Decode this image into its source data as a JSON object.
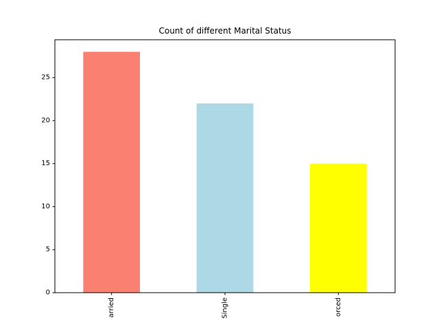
{
  "chart_data": {
    "type": "bar",
    "title": "Count of different Marital Status",
    "xlabel": "",
    "ylabel": "",
    "categories": [
      "arried",
      "Single",
      "orced"
    ],
    "values": [
      28,
      22,
      15
    ],
    "colors": [
      "#fa8072",
      "#add8e6",
      "#ffff00"
    ],
    "ylim": [
      0,
      29.4
    ],
    "yticks": [
      0,
      5,
      10,
      15,
      20,
      25
    ],
    "xtick_rotation": "vertical",
    "grid": false,
    "legend": "none"
  }
}
